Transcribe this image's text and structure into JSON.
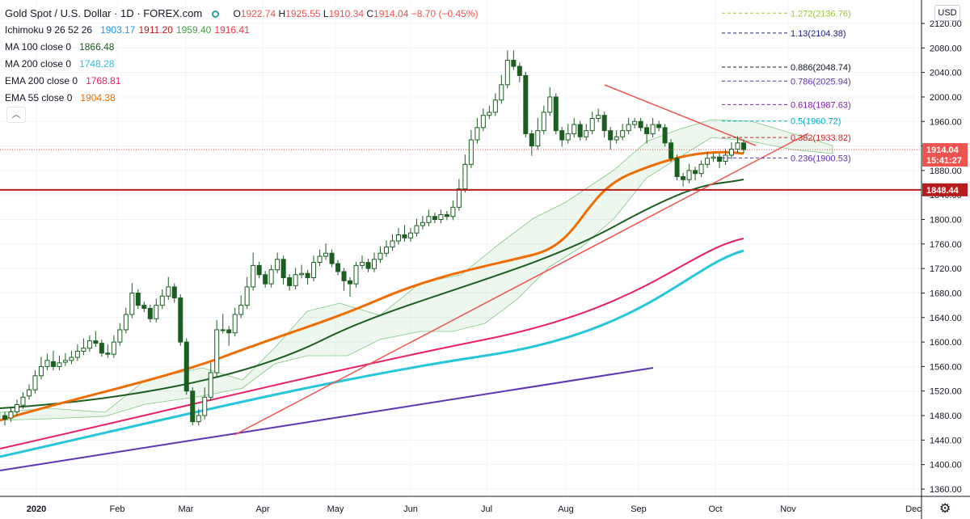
{
  "header": {
    "title": "Gold Spot / U.S. Dollar · 1D · FOREX.com",
    "ohlc": [
      {
        "label": "O",
        "value": "1922.74"
      },
      {
        "label": "H",
        "value": "1925.55"
      },
      {
        "label": "L",
        "value": "1910.34"
      },
      {
        "label": "C",
        "value": "1914.04"
      }
    ],
    "change": "−8.70 (−0.45%)"
  },
  "indicators": [
    {
      "name": "Ichimoku 9 26 52 26",
      "values": [
        {
          "v": "1903.17",
          "color": "#2196f3"
        },
        {
          "v": "1911.20",
          "color": "#b71c1c"
        },
        {
          "v": "1959.40",
          "color": "#43a047"
        },
        {
          "v": "1916.41",
          "color": "#f23645"
        }
      ]
    },
    {
      "name": "MA 100 close 0",
      "values": [
        {
          "v": "1866.48",
          "color": "#1b5e20"
        }
      ]
    },
    {
      "name": "MA 200 close 0",
      "values": [
        {
          "v": "1748.28",
          "color": "#26c6da"
        }
      ]
    },
    {
      "name": "EMA 200 close 0",
      "values": [
        {
          "v": "1768.81",
          "color": "#e91e63"
        }
      ]
    },
    {
      "name": "EMA 55 close 0",
      "values": [
        {
          "v": "1904.38",
          "color": "#ef6c00"
        }
      ]
    }
  ],
  "collapse_icon": "chevron-up-icon",
  "settings_icon": "gear-icon",
  "currency": "USD",
  "colors": {
    "up": "#26a69a",
    "down": "#ef5350",
    "candle_body": "#1b5e20",
    "fib_line": "#1a237e"
  },
  "chart_data": {
    "type": "candlestick",
    "y_axis": {
      "ticks": [
        1360,
        1400,
        1440,
        1480,
        1520,
        1560,
        1600,
        1640,
        1680,
        1720,
        1760,
        1800,
        1840,
        1880,
        1920,
        1960,
        2000,
        2040,
        2080,
        2120
      ],
      "labels": [
        "1360.00",
        "1400.00",
        "1440.00",
        "1480.00",
        "1520.00",
        "1560.00",
        "1600.00",
        "1640.00",
        "1680.00",
        "1720.00",
        "1760.00",
        "1800.00",
        "1840.00",
        "1880.00",
        "1920.00",
        "1960.00",
        "2000.00",
        "2040.00",
        "2080.00",
        "2120.00"
      ],
      "range": [
        1340,
        2140
      ]
    },
    "x_axis": {
      "labels": [
        "2020",
        "Feb",
        "Mar",
        "Apr",
        "May",
        "Jun",
        "Jul",
        "Aug",
        "Sep",
        "Oct",
        "Nov",
        "Dec"
      ]
    },
    "price_labels": [
      {
        "value": 1914.04,
        "text": "1914.04",
        "color": "#ef5350"
      },
      {
        "value": 1897.0,
        "text": "15:41:27",
        "color": "#ef5350"
      },
      {
        "value": 1848.44,
        "text": "1848.44",
        "color": "#b71c1c"
      }
    ],
    "horizontal_level": 1848.44,
    "fibonacci": [
      {
        "ratio": "1.272",
        "value": 2136.76,
        "text": "1.272(2136.76)",
        "color": "#9bc53d"
      },
      {
        "ratio": "1.13",
        "value": 2104.38,
        "text": "1.13(2104.38)",
        "color": "#1a237e"
      },
      {
        "ratio": "0.886",
        "value": 2048.74,
        "text": "0.886(2048.74)",
        "color": "#131722"
      },
      {
        "ratio": "0.786",
        "value": 2025.94,
        "text": "0.786(2025.94)",
        "color": "#5e35b1"
      },
      {
        "ratio": "0.618",
        "value": 1987.63,
        "text": "0.618(1987.63)",
        "color": "#7b1fa2"
      },
      {
        "ratio": "0.5",
        "value": 1960.72,
        "text": "0.5(1960.72)",
        "color": "#00acc1"
      },
      {
        "ratio": "0.382",
        "value": 1933.82,
        "text": "0.382(1933.82)",
        "color": "#c62828"
      },
      {
        "ratio": "0.236",
        "value": 1900.53,
        "text": "0.236(1900.53)",
        "color": "#5e35b1"
      }
    ],
    "candles_approx": [
      [
        1480,
        1470,
        1474
      ],
      [
        1476,
        1488,
        1486
      ],
      [
        1486,
        1500,
        1498
      ],
      [
        1497,
        1512,
        1510
      ],
      [
        1512,
        1525,
        1522
      ],
      [
        1522,
        1548,
        1545
      ],
      [
        1545,
        1570,
        1560
      ],
      [
        1560,
        1575,
        1570
      ],
      [
        1568,
        1580,
        1560
      ],
      [
        1560,
        1572,
        1566
      ],
      [
        1567,
        1576,
        1570
      ],
      [
        1570,
        1580,
        1575
      ],
      [
        1575,
        1590,
        1585
      ],
      [
        1585,
        1600,
        1590
      ],
      [
        1590,
        1605,
        1602
      ],
      [
        1602,
        1612,
        1598
      ],
      [
        1598,
        1585,
        1582
      ],
      [
        1582,
        1590,
        1580
      ],
      [
        1580,
        1605,
        1600
      ],
      [
        1600,
        1625,
        1620
      ],
      [
        1620,
        1650,
        1645
      ],
      [
        1645,
        1690,
        1680
      ],
      [
        1680,
        1665,
        1660
      ],
      [
        1660,
        1660,
        1655
      ],
      [
        1655,
        1640,
        1638
      ],
      [
        1638,
        1665,
        1660
      ],
      [
        1660,
        1680,
        1675
      ],
      [
        1675,
        1700,
        1690
      ],
      [
        1690,
        1670,
        1672
      ],
      [
        1672,
        1650,
        1600
      ],
      [
        1600,
        1550,
        1520
      ],
      [
        1520,
        1475,
        1470
      ],
      [
        1470,
        1485,
        1480
      ],
      [
        1480,
        1520,
        1510
      ],
      [
        1510,
        1560,
        1550
      ],
      [
        1550,
        1630,
        1620
      ],
      [
        1620,
        1640,
        1620
      ],
      [
        1620,
        1600,
        1615
      ],
      [
        1615,
        1650,
        1645
      ],
      [
        1645,
        1670,
        1660
      ],
      [
        1660,
        1700,
        1690
      ],
      [
        1690,
        1740,
        1725
      ],
      [
        1725,
        1715,
        1710
      ],
      [
        1710,
        1700,
        1695
      ],
      [
        1695,
        1720,
        1718
      ],
      [
        1718,
        1740,
        1735
      ],
      [
        1735,
        1700,
        1705
      ],
      [
        1705,
        1690,
        1692
      ],
      [
        1692,
        1715,
        1710
      ],
      [
        1710,
        1720,
        1712
      ],
      [
        1712,
        1700,
        1705
      ],
      [
        1705,
        1735,
        1730
      ],
      [
        1730,
        1745,
        1740
      ],
      [
        1740,
        1755,
        1745
      ],
      [
        1745,
        1730,
        1728
      ],
      [
        1728,
        1720,
        1715
      ],
      [
        1715,
        1690,
        1700
      ],
      [
        1700,
        1680,
        1695
      ],
      [
        1695,
        1720,
        1725
      ],
      [
        1725,
        1735,
        1730
      ],
      [
        1730,
        1725,
        1720
      ],
      [
        1720,
        1740,
        1735
      ],
      [
        1735,
        1750,
        1745
      ],
      [
        1745,
        1760,
        1755
      ],
      [
        1755,
        1770,
        1765
      ],
      [
        1765,
        1780,
        1775
      ],
      [
        1775,
        1785,
        1770
      ],
      [
        1770,
        1780,
        1778
      ],
      [
        1778,
        1795,
        1790
      ],
      [
        1790,
        1800,
        1795
      ],
      [
        1795,
        1810,
        1805
      ],
      [
        1805,
        1800,
        1800
      ],
      [
        1800,
        1810,
        1808
      ],
      [
        1808,
        1805,
        1805
      ],
      [
        1805,
        1825,
        1820
      ],
      [
        1820,
        1860,
        1850
      ],
      [
        1850,
        1900,
        1890
      ],
      [
        1890,
        1940,
        1930
      ],
      [
        1930,
        1960,
        1950
      ],
      [
        1950,
        1975,
        1970
      ],
      [
        1970,
        1980,
        1975
      ],
      [
        1975,
        2000,
        1995
      ],
      [
        1995,
        2030,
        2020
      ],
      [
        2020,
        2070,
        2060
      ],
      [
        2060,
        2070,
        2050
      ],
      [
        2050,
        2030,
        2035
      ],
      [
        2035,
        2000,
        1940
      ],
      [
        1940,
        1910,
        1920
      ],
      [
        1920,
        1960,
        1945
      ],
      [
        1945,
        1980,
        1975
      ],
      [
        1975,
        2010,
        2000
      ],
      [
        2000,
        1960,
        1945
      ],
      [
        1945,
        1925,
        1930
      ],
      [
        1930,
        1950,
        1940
      ],
      [
        1940,
        1960,
        1955
      ],
      [
        1955,
        1940,
        1935
      ],
      [
        1935,
        1950,
        1945
      ],
      [
        1945,
        1970,
        1965
      ],
      [
        1965,
        1975,
        1970
      ],
      [
        1970,
        1940,
        1945
      ],
      [
        1945,
        1920,
        1930
      ],
      [
        1930,
        1940,
        1935
      ],
      [
        1935,
        1950,
        1945
      ],
      [
        1945,
        1960,
        1955
      ],
      [
        1955,
        1960,
        1960
      ],
      [
        1960,
        1950,
        1950
      ],
      [
        1950,
        1930,
        1940
      ],
      [
        1940,
        1960,
        1955
      ],
      [
        1955,
        1950,
        1950
      ],
      [
        1950,
        1930,
        1925
      ],
      [
        1925,
        1910,
        1900
      ],
      [
        1900,
        1870,
        1870
      ],
      [
        1870,
        1860,
        1865
      ],
      [
        1865,
        1885,
        1880
      ],
      [
        1880,
        1870,
        1875
      ],
      [
        1875,
        1890,
        1890
      ],
      [
        1890,
        1905,
        1900
      ],
      [
        1900,
        1900,
        1902
      ],
      [
        1902,
        1890,
        1895
      ],
      [
        1895,
        1910,
        1905
      ],
      [
        1905,
        1920,
        1915
      ],
      [
        1915,
        1930,
        1925
      ],
      [
        1925,
        1920,
        1914
      ]
    ]
  }
}
